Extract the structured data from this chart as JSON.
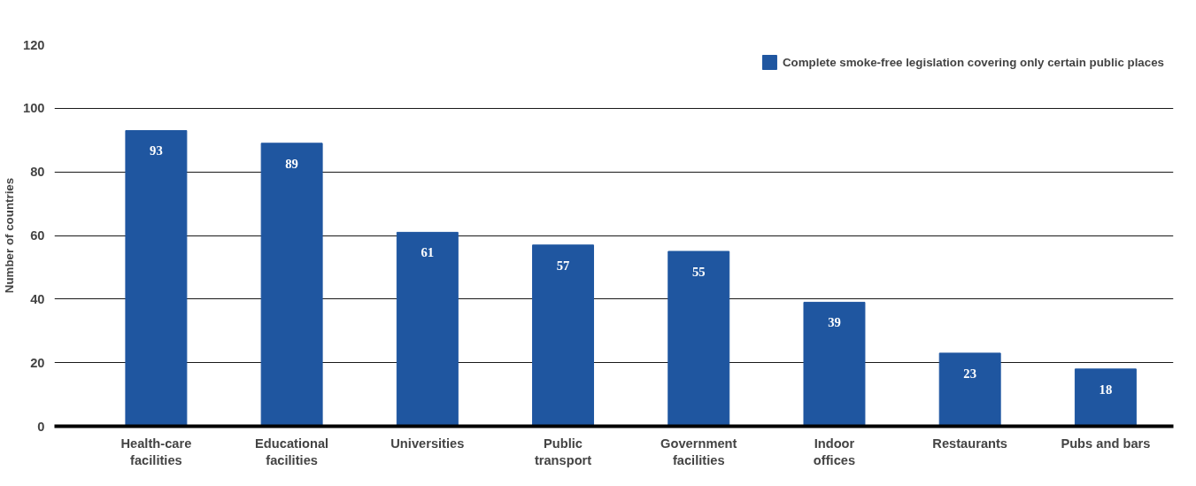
{
  "chart_data": {
    "type": "bar",
    "ylabel": "Number of countries",
    "categories": [
      "Health-care facilities",
      "Educational facilities",
      "Universities",
      "Public transport",
      "Government facilities",
      "Indoor offices",
      "Restaurants",
      "Pubs and bars"
    ],
    "series": [
      {
        "name": "Complete smoke-free legislation covering only certain public places",
        "color": "#1f56a0",
        "values": [
          93,
          89,
          61,
          57,
          55,
          39,
          23,
          18
        ]
      }
    ],
    "ylim": [
      0,
      120
    ],
    "yticks": [
      0,
      20,
      40,
      60,
      80,
      100,
      120
    ],
    "grid": "y",
    "legend": "top right",
    "data_labels": true
  }
}
